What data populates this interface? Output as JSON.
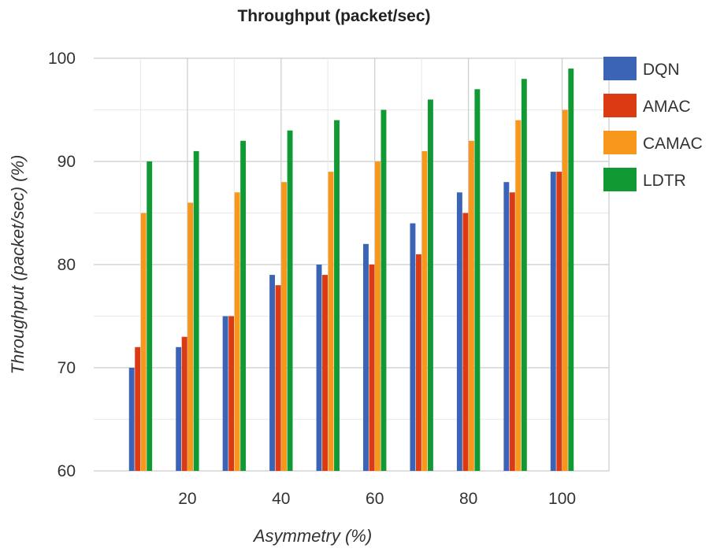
{
  "chart_data": {
    "type": "bar",
    "title": "Throughput (packet/sec)",
    "xlabel": "Asymmetry (%)",
    "ylabel": "Throughput (packet/sec) (%)",
    "x": [
      10,
      20,
      30,
      40,
      50,
      60,
      70,
      80,
      90,
      100
    ],
    "x_tick_labels": [
      "20",
      "40",
      "60",
      "80",
      "100"
    ],
    "y_tick_labels": [
      "60",
      "70",
      "80",
      "90",
      "100"
    ],
    "ylim": [
      60,
      100
    ],
    "grid": true,
    "legend_position": "right",
    "series": [
      {
        "name": "DQN",
        "color": "#3b64b6",
        "values": [
          70,
          72,
          75,
          79,
          80,
          82,
          84,
          87,
          88,
          89
        ]
      },
      {
        "name": "AMAC",
        "color": "#dc3a12",
        "values": [
          72,
          73,
          75,
          78,
          79,
          80,
          81,
          85,
          87,
          89
        ]
      },
      {
        "name": "CAMAC",
        "color": "#f7981d",
        "values": [
          85,
          86,
          87,
          88,
          89,
          90,
          91,
          92,
          94,
          95
        ]
      },
      {
        "name": "LDTR",
        "color": "#119a34",
        "values": [
          90,
          91,
          92,
          93,
          94,
          95,
          96,
          97,
          98,
          99
        ]
      }
    ]
  }
}
